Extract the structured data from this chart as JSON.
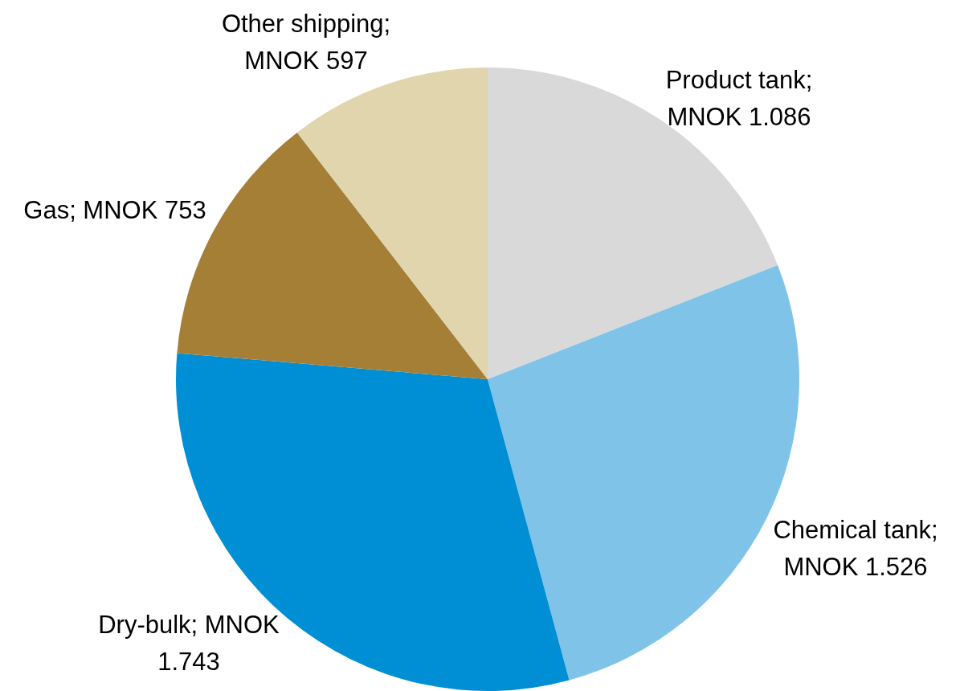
{
  "chart_data": {
    "type": "pie",
    "categories": [
      "Product tank; MNOK 1.086",
      "Chemical tank; MNOK 1.526",
      "Dry-bulk; MNOK 1.743",
      "Gas; MNOK 753",
      "Other shipping; MNOK 597"
    ],
    "values": [
      1086,
      1526,
      1743,
      753,
      597
    ],
    "colors": [
      "#d9d9d9",
      "#7fc4e8",
      "#008fd5",
      "#a67f36",
      "#e1d5ae"
    ],
    "legend": false
  }
}
